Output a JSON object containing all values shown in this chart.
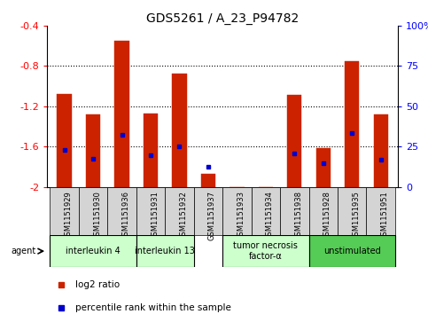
{
  "title": "GDS5261 / A_23_P94782",
  "samples": [
    "GSM1151929",
    "GSM1151930",
    "GSM1151936",
    "GSM1151931",
    "GSM1151932",
    "GSM1151937",
    "GSM1151933",
    "GSM1151934",
    "GSM1151938",
    "GSM1151928",
    "GSM1151935",
    "GSM1151951"
  ],
  "log2_values": [
    -1.08,
    -1.28,
    -0.55,
    -1.27,
    -0.88,
    -1.87,
    -2.0,
    -2.0,
    -1.09,
    -1.62,
    -0.75,
    -1.28
  ],
  "percentile_values": [
    -1.63,
    -1.72,
    -1.48,
    -1.69,
    -1.6,
    -1.8,
    -2.01,
    -2.01,
    -1.67,
    -1.77,
    -1.47,
    -1.73
  ],
  "bar_color": "#cc2200",
  "pct_color": "#0000cc",
  "ylim_left": [
    -2.0,
    -0.4
  ],
  "yticks_left": [
    -2.0,
    -1.6,
    -1.2,
    -0.8,
    -0.4
  ],
  "yticks_left_labels": [
    "-2",
    "-1.6",
    "-1.2",
    "-0.8",
    "-0.4"
  ],
  "yticks_right_vals": [
    "0",
    "25",
    "50",
    "75",
    "100%"
  ],
  "agents": [
    {
      "label": "interleukin 4",
      "start": 0,
      "end": 3,
      "color": "#ccffcc"
    },
    {
      "label": "interleukin 13",
      "start": 3,
      "end": 5,
      "color": "#ccffcc"
    },
    {
      "label": "tumor necrosis\nfactor-α",
      "start": 6,
      "end": 9,
      "color": "#ccffcc"
    },
    {
      "label": "unstimulated",
      "start": 9,
      "end": 12,
      "color": "#55cc55"
    }
  ],
  "agent_label": "agent",
  "bar_width": 0.5,
  "figsize": [
    4.83,
    3.63
  ],
  "dpi": 100,
  "background_color": "#ffffff",
  "title_fontsize": 10,
  "tick_fontsize": 6,
  "agent_fontsize": 7,
  "legend_fontsize": 7.5,
  "ytick_fontsize": 8,
  "sample_box_color": "#d4d4d4",
  "legend_red_label": "log2 ratio",
  "legend_blue_label": "percentile rank within the sample"
}
